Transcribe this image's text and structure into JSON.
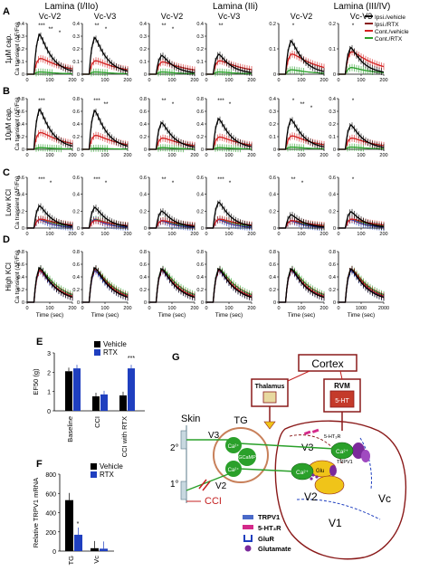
{
  "panel_labels": {
    "A": "A",
    "B": "B",
    "C": "C",
    "D": "D",
    "E": "E",
    "F": "F",
    "G": "G"
  },
  "lamina_headers": [
    "Lamina (I/IIo)",
    "Lamina (IIi)",
    "Lamina (III/IV)"
  ],
  "column_headers": [
    "Vc-V2",
    "Vc-V3",
    "Vc-V2",
    "Vc-V3",
    "Vc-V2",
    "Vc-V3"
  ],
  "row_labels": [
    "1μM cap.",
    "10μM cap.",
    "Low KCl",
    "High KCl"
  ],
  "ylabel": "Ca transient (ΔF/Fo)",
  "xlabel": "Time (sec)",
  "legend": [
    "Ipsi./vehicle",
    "Ipsi./RTX",
    "Cont./vehicle",
    "Cont./RTX"
  ],
  "colors": {
    "black": "#000000",
    "red": "#d42020",
    "green": "#2aa02a",
    "blue": "#1f3fbf",
    "purple": "#7b2a9b",
    "brown": "#8a1a1a",
    "khaki": "#e8d9a0",
    "yellow": "#f0c419"
  },
  "chart_data": [
    {
      "type": "line",
      "title": "Calcium transient time courses (rows A–D, 6 columns)",
      "x_ticks": [
        0,
        100,
        200
      ],
      "x_ticks_wide": [
        0,
        1000,
        2000
      ],
      "rows": [
        {
          "row": "A",
          "label": "1μM cap.",
          "ymax": [
            0.4,
            0.4,
            0.4,
            0.4,
            0.2,
            0.2
          ],
          "yticks": [
            [
              0,
              0.1,
              0.2,
              0.3,
              0.4
            ],
            [
              0,
              0.1,
              0.2,
              0.3,
              0.4
            ],
            [
              0,
              0.1,
              0.2,
              0.3,
              0.4
            ],
            [
              0,
              0.1,
              0.2,
              0.3,
              0.4
            ],
            [
              0,
              0.1,
              0.2
            ],
            [
              0,
              0.1,
              0.2
            ]
          ],
          "peak_black": [
            0.36,
            0.33,
            0.17,
            0.18,
            0.15,
            0.12
          ],
          "peak_red": [
            0.14,
            0.12,
            0.11,
            0.12,
            0.09,
            0.1
          ],
          "peak_green": [
            0.02,
            0.02,
            0.02,
            0.02,
            0.02,
            0.03
          ],
          "stars": [
            [
              "***",
              "**",
              "*"
            ],
            [
              "**",
              "*"
            ],
            [
              "**",
              "*"
            ],
            [
              "**"
            ],
            [
              "*"
            ],
            [
              "*"
            ]
          ]
        },
        {
          "row": "B",
          "label": "10μM cap.",
          "ymax": [
            0.8,
            0.8,
            0.8,
            0.8,
            0.4,
            0.4
          ],
          "yticks": [
            [
              0,
              0.2,
              0.4,
              0.6,
              0.8
            ],
            [
              0,
              0.2,
              0.4,
              0.6,
              0.8
            ],
            [
              0,
              0.2,
              0.4,
              0.6,
              0.8
            ],
            [
              0,
              0.2,
              0.4,
              0.6,
              0.8
            ],
            [
              0,
              0.1,
              0.2,
              0.3,
              0.4
            ],
            [
              0,
              0.1,
              0.2,
              0.3,
              0.4
            ]
          ],
          "peak_black": [
            0.72,
            0.7,
            0.48,
            0.55,
            0.27,
            0.22
          ],
          "peak_red": [
            0.3,
            0.25,
            0.2,
            0.22,
            0.12,
            0.1
          ],
          "peak_green": [
            0.03,
            0.02,
            0.03,
            0.03,
            0.02,
            0.02
          ],
          "stars": [
            [
              "***"
            ],
            [
              "***",
              "**"
            ],
            [
              "**",
              "*"
            ],
            [
              "***",
              "*"
            ],
            [
              "*",
              "**",
              "*"
            ],
            [
              "*"
            ]
          ]
        },
        {
          "row": "C",
          "label": "Low KCl",
          "ymax": [
            0.6,
            0.6,
            0.6,
            0.6,
            0.6,
            0.6
          ],
          "yticks": [
            [
              0,
              0.2,
              0.4,
              0.6
            ],
            [
              0,
              0.2,
              0.4,
              0.6
            ],
            [
              0,
              0.2,
              0.4,
              0.6
            ],
            [
              0,
              0.2,
              0.4,
              0.6
            ],
            [
              0,
              0.2,
              0.4,
              0.6
            ],
            [
              0,
              0.2,
              0.4,
              0.6
            ]
          ],
          "peak_black": [
            0.3,
            0.28,
            0.23,
            0.35,
            0.18,
            0.22
          ],
          "peak_red": [
            0.12,
            0.1,
            0.1,
            0.12,
            0.1,
            0.12
          ],
          "peak_green": [
            0.12,
            0.12,
            0.1,
            0.12,
            0.1,
            0.12
          ],
          "stars": [
            [
              "***",
              "*"
            ],
            [
              "***",
              "*"
            ],
            [
              "**",
              "*"
            ],
            [
              "***",
              "*"
            ],
            [
              "**",
              "*"
            ],
            [
              "*"
            ]
          ]
        },
        {
          "row": "D",
          "label": "High KCl",
          "ymax": [
            0.8,
            0.8,
            0.8,
            0.8,
            0.8,
            0.8
          ],
          "yticks": [
            [
              0,
              0.2,
              0.4,
              0.6,
              0.8
            ],
            [
              0,
              0.2,
              0.4,
              0.6,
              0.8
            ],
            [
              0,
              0.2,
              0.4,
              0.6,
              0.8
            ],
            [
              0,
              0.2,
              0.4,
              0.6,
              0.8
            ],
            [
              0,
              0.2,
              0.4,
              0.6,
              0.8
            ],
            [
              0,
              0.2,
              0.4,
              0.6,
              0.8
            ]
          ],
          "peak_black": [
            0.62,
            0.62,
            0.6,
            0.6,
            0.6,
            0.6
          ],
          "peak_red": [
            0.58,
            0.6,
            0.58,
            0.58,
            0.58,
            0.6
          ],
          "peak_green": [
            0.6,
            0.6,
            0.6,
            0.6,
            0.6,
            0.6
          ],
          "stars": [
            [],
            [],
            [],
            [],
            [],
            []
          ]
        }
      ]
    },
    {
      "type": "bar",
      "panel": "E",
      "categories": [
        "Baseline",
        "CCI",
        "CCI with RTX"
      ],
      "ylabel": "EF50 (g)",
      "ylim": [
        0,
        3
      ],
      "yticks": [
        0,
        1,
        2,
        3
      ],
      "series": [
        {
          "name": "Vehicle",
          "values": [
            2.05,
            0.75,
            0.8
          ]
        },
        {
          "name": "RTX",
          "values": [
            2.2,
            0.85,
            2.2
          ]
        }
      ],
      "annotations": [
        "***"
      ]
    },
    {
      "type": "bar",
      "panel": "F",
      "categories": [
        "TG",
        "Vc"
      ],
      "ylabel": "Relative TRPV1 mRNA",
      "ylim": [
        0,
        800
      ],
      "yticks": [
        0,
        200,
        400,
        600,
        800
      ],
      "series": [
        {
          "name": "Vehicle",
          "values": [
            530,
            30
          ]
        },
        {
          "name": "RTX",
          "values": [
            170,
            25
          ]
        }
      ],
      "annotations": [
        "*"
      ]
    }
  ],
  "diagram": {
    "cortex": "Cortex",
    "thalamus": "Thalamus",
    "rvm": "RVM",
    "serotonin": "5-HT",
    "skin": "Skin",
    "tg": "TG",
    "v2": "V2",
    "v3": "V3",
    "v1": "V1",
    "vc": "Vc",
    "second_order": "2°",
    "first_order": "1°",
    "cci": "CCI",
    "ca": "Ca²⁺",
    "gcamp": "GCaMP",
    "ht3r": "5-HT₃R",
    "trpv1_small": "TRPV1",
    "glu": "Glu",
    "legend": [
      "TRPV1",
      "5-HT₃R",
      "GluR",
      "Glutamate"
    ]
  }
}
